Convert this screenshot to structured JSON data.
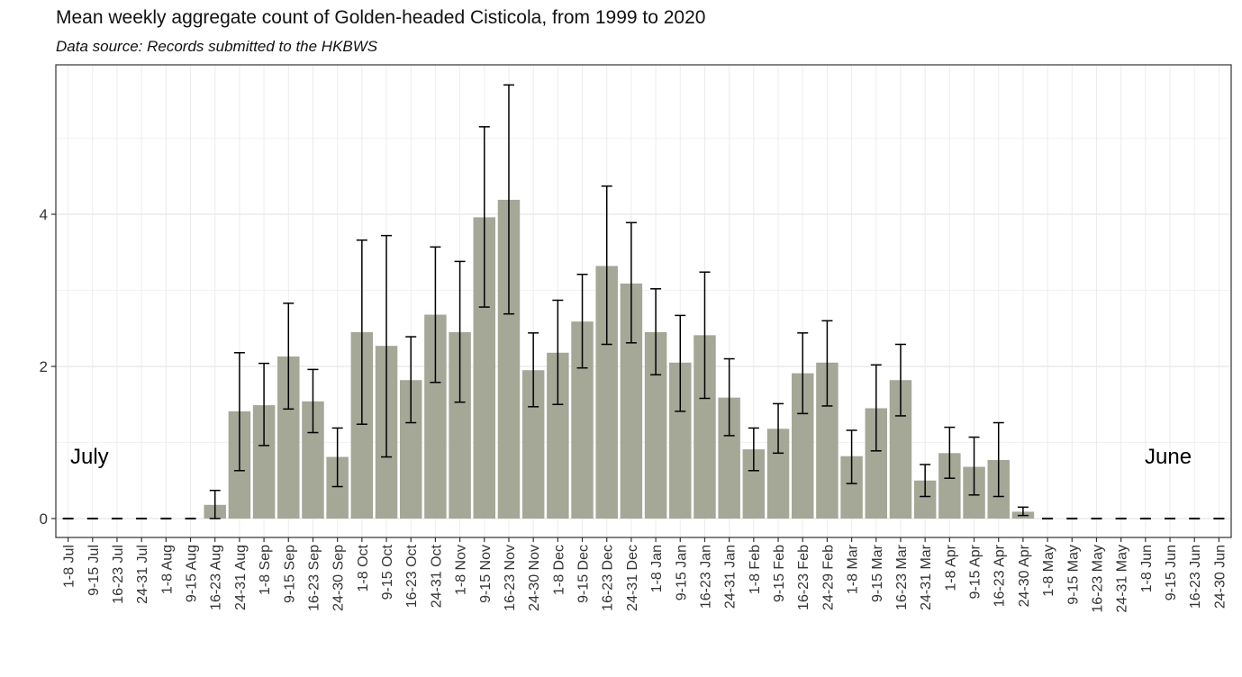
{
  "chart_data": {
    "type": "bar",
    "title": "Mean weekly aggregate count of Golden-headed Cisticola, from 1999 to 2020",
    "subtitle": "Data source: Records submitted to the HKBWS",
    "xlabel": "",
    "ylabel": "",
    "ylim": [
      0,
      5.8
    ],
    "yticks": [
      0,
      2,
      4
    ],
    "grid": true,
    "bar_color": "#a5a797",
    "categories": [
      "1-8 Jul",
      "9-15 Jul",
      "16-23 Jul",
      "24-31 Jul",
      "1-8 Aug",
      "9-15 Aug",
      "16-23 Aug",
      "24-31 Aug",
      "1-8 Sep",
      "9-15 Sep",
      "16-23 Sep",
      "24-30 Sep",
      "1-8 Oct",
      "9-15 Oct",
      "16-23 Oct",
      "24-31 Oct",
      "1-8 Nov",
      "9-15 Nov",
      "16-23 Nov",
      "24-30 Nov",
      "1-8 Dec",
      "9-15 Dec",
      "16-23 Dec",
      "24-31 Dec",
      "1-8 Jan",
      "9-15 Jan",
      "16-23 Jan",
      "24-31 Jan",
      "1-8 Feb",
      "9-15 Feb",
      "16-23 Feb",
      "24-29 Feb",
      "1-8 Mar",
      "9-15 Mar",
      "16-23 Mar",
      "24-31 Mar",
      "1-8 Apr",
      "9-15 Apr",
      "16-23 Apr",
      "24-30 Apr",
      "1-8 May",
      "9-15 May",
      "16-23 May",
      "24-31 May",
      "1-8 Jun",
      "9-15 Jun",
      "16-23 Jun",
      "24-30 Jun"
    ],
    "values": [
      0,
      0,
      0,
      0,
      0,
      0,
      0.18,
      1.41,
      1.49,
      2.13,
      1.54,
      0.81,
      2.45,
      2.27,
      1.82,
      2.68,
      2.45,
      3.96,
      4.19,
      1.95,
      2.18,
      2.59,
      3.32,
      3.09,
      2.45,
      2.05,
      2.41,
      1.59,
      0.91,
      1.18,
      1.91,
      2.05,
      0.82,
      1.45,
      1.82,
      0.5,
      0.86,
      0.68,
      0.77,
      0.09,
      0,
      0,
      0,
      0,
      0,
      0,
      0,
      0
    ],
    "error_low": [
      0,
      0,
      0,
      0,
      0,
      0,
      0,
      0.63,
      0.96,
      1.44,
      1.13,
      0.42,
      1.24,
      0.81,
      1.26,
      1.79,
      1.53,
      2.78,
      2.69,
      1.47,
      1.5,
      1.98,
      2.29,
      2.31,
      1.89,
      1.41,
      1.58,
      1.09,
      0.63,
      0.86,
      1.38,
      1.48,
      0.46,
      0.89,
      1.35,
      0.29,
      0.53,
      0.31,
      0.29,
      0.04,
      0,
      0,
      0,
      0,
      0,
      0,
      0,
      0
    ],
    "error_high": [
      0,
      0,
      0,
      0,
      0,
      0,
      0.37,
      2.18,
      2.04,
      2.83,
      1.96,
      1.19,
      3.66,
      3.72,
      2.39,
      3.57,
      3.38,
      5.15,
      5.7,
      2.44,
      2.87,
      3.21,
      4.37,
      3.89,
      3.02,
      2.67,
      3.24,
      2.1,
      1.19,
      1.51,
      2.44,
      2.6,
      1.16,
      2.02,
      2.29,
      0.71,
      1.2,
      1.07,
      1.26,
      0.15,
      0,
      0,
      0,
      0,
      0,
      0,
      0,
      0
    ],
    "annotations": [
      "July",
      "June"
    ]
  }
}
